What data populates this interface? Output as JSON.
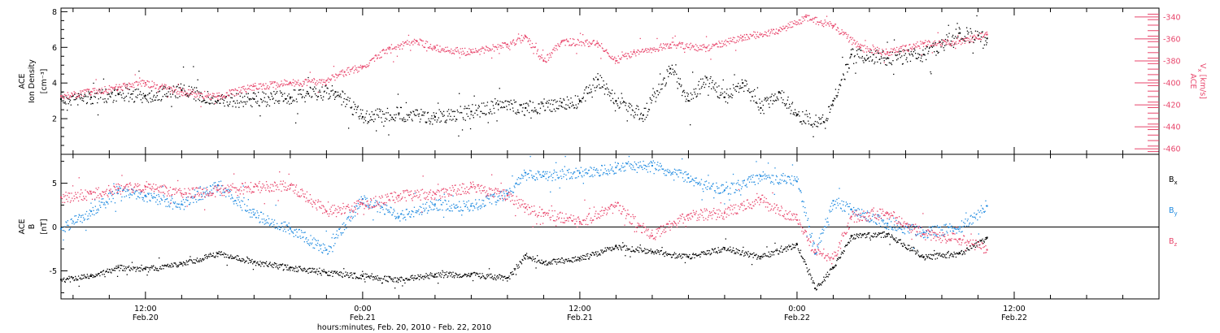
{
  "xlabel": "hours:minutes, Feb. 20, 2010 - Feb. 22, 2010",
  "colors": {
    "black": "#000000",
    "red": "#e8456b",
    "blue": "#1f8ae0"
  },
  "chart_data": [
    {
      "type": "scatter",
      "x_range": [
        "2010-02-20 07:20",
        "2010-02-22 20:00"
      ],
      "x_ticks": [
        {
          "time": "2010-02-20 12:00",
          "label1": "12:00",
          "label2": "Feb.20"
        },
        {
          "time": "2010-02-21 00:00",
          "label1": "0:00",
          "label2": "Feb.21"
        },
        {
          "time": "2010-02-21 12:00",
          "label1": "12:00",
          "label2": "Feb.21"
        },
        {
          "time": "2010-02-22 00:00",
          "label1": "0:00",
          "label2": "Feb.22"
        },
        {
          "time": "2010-02-22 12:00",
          "label1": "12:00",
          "label2": "Feb.22"
        }
      ],
      "left_axis": {
        "label_lines": [
          "ACE",
          "Ion Density"
        ],
        "unit": "[cm⁻³]",
        "ylim": [
          0,
          8.2
        ],
        "ticks": [
          2,
          4,
          6,
          8
        ]
      },
      "right_axis": {
        "label": "ACE",
        "unit": "V",
        "unit_sub": "x",
        "unit_suffix": "[km/s]",
        "ylim": [
          -465,
          -332
        ],
        "ticks": [
          -340,
          -360,
          -380,
          -400,
          -420,
          -440,
          -460
        ]
      },
      "series": [
        {
          "key": "density",
          "color": "#000000",
          "axis": "left",
          "points": [
            [
              "2010-02-20 07:20",
              3.1
            ],
            [
              "2010-02-20 09:00",
              3.2
            ],
            [
              "2010-02-20 10:30",
              3.4
            ],
            [
              "2010-02-20 12:00",
              3.3
            ],
            [
              "2010-02-20 14:00",
              3.6
            ],
            [
              "2010-02-20 16:00",
              3.0
            ],
            [
              "2010-02-20 18:00",
              3.1
            ],
            [
              "2010-02-20 20:00",
              3.2
            ],
            [
              "2010-02-20 21:00",
              3.4
            ],
            [
              "2010-02-20 22:30",
              3.5
            ],
            [
              "2010-02-21 00:00",
              2.1
            ],
            [
              "2010-02-21 02:00",
              2.3
            ],
            [
              "2010-02-21 04:00",
              2.1
            ],
            [
              "2010-02-21 06:00",
              2.4
            ],
            [
              "2010-02-21 07:30",
              2.8
            ],
            [
              "2010-02-21 09:00",
              2.6
            ],
            [
              "2010-02-21 11:00",
              2.9
            ],
            [
              "2010-02-21 12:00",
              3.0
            ],
            [
              "2010-02-21 13:00",
              4.2
            ],
            [
              "2010-02-21 14:00",
              3.0
            ],
            [
              "2010-02-21 15:30",
              2.2
            ],
            [
              "2010-02-21 17:00",
              4.8
            ],
            [
              "2010-02-21 18:00",
              3.0
            ],
            [
              "2010-02-21 19:00",
              4.3
            ],
            [
              "2010-02-21 20:00",
              3.2
            ],
            [
              "2010-02-21 21:00",
              4.0
            ],
            [
              "2010-02-21 22:00",
              2.6
            ],
            [
              "2010-02-21 23:00",
              3.5
            ],
            [
              "2010-02-22 00:00",
              2.2
            ],
            [
              "2010-02-22 01:30",
              1.8
            ],
            [
              "2010-02-22 02:00",
              3.0
            ],
            [
              "2010-02-22 03:00",
              5.6
            ],
            [
              "2010-02-22 05:00",
              5.4
            ],
            [
              "2010-02-22 07:00",
              5.6
            ],
            [
              "2010-02-22 09:00",
              6.8
            ],
            [
              "2010-02-22 10:30",
              6.5
            ]
          ]
        },
        {
          "key": "vx",
          "color": "#e8456b",
          "axis": "right",
          "points": [
            [
              "2010-02-20 07:20",
              -412
            ],
            [
              "2010-02-20 09:00",
              -408
            ],
            [
              "2010-02-20 10:30",
              -404
            ],
            [
              "2010-02-20 12:00",
              -400
            ],
            [
              "2010-02-20 14:00",
              -408
            ],
            [
              "2010-02-20 16:00",
              -412
            ],
            [
              "2010-02-20 18:00",
              -403
            ],
            [
              "2010-02-20 20:00",
              -400
            ],
            [
              "2010-02-20 22:00",
              -398
            ],
            [
              "2010-02-20 23:00",
              -390
            ],
            [
              "2010-02-21 00:00",
              -385
            ],
            [
              "2010-02-21 01:30",
              -368
            ],
            [
              "2010-02-21 03:00",
              -362
            ],
            [
              "2010-02-21 04:00",
              -368
            ],
            [
              "2010-02-21 06:00",
              -372
            ],
            [
              "2010-02-21 08:00",
              -365
            ],
            [
              "2010-02-21 09:00",
              -358
            ],
            [
              "2010-02-21 10:00",
              -380
            ],
            [
              "2010-02-21 11:00",
              -362
            ],
            [
              "2010-02-21 13:00",
              -364
            ],
            [
              "2010-02-21 14:00",
              -380
            ],
            [
              "2010-02-21 15:00",
              -372
            ],
            [
              "2010-02-21 17:00",
              -365
            ],
            [
              "2010-02-21 19:00",
              -368
            ],
            [
              "2010-02-21 21:00",
              -358
            ],
            [
              "2010-02-21 23:00",
              -352
            ],
            [
              "2010-02-22 00:30",
              -340
            ],
            [
              "2010-02-22 02:00",
              -348
            ],
            [
              "2010-02-22 03:30",
              -368
            ],
            [
              "2010-02-22 05:00",
              -372
            ],
            [
              "2010-02-22 07:00",
              -364
            ],
            [
              "2010-02-22 09:00",
              -362
            ],
            [
              "2010-02-22 10:30",
              -356
            ]
          ]
        }
      ]
    },
    {
      "type": "scatter",
      "ylabel_lines": [
        "ACE",
        "B"
      ],
      "unit": "[nT]",
      "ylim": [
        -8.2,
        8.3
      ],
      "ticks": [
        -5,
        0,
        5
      ],
      "legend": [
        {
          "base": "B",
          "sub": "x",
          "color": "#000000"
        },
        {
          "base": "B",
          "sub": "y",
          "color": "#1f8ae0"
        },
        {
          "base": "B",
          "sub": "z",
          "color": "#e8456b"
        }
      ],
      "series": [
        {
          "key": "bx",
          "color": "#000000",
          "points": [
            [
              "2010-02-20 07:20",
              -6.0
            ],
            [
              "2010-02-20 09:00",
              -5.6
            ],
            [
              "2010-02-20 10:30",
              -4.6
            ],
            [
              "2010-02-20 12:00",
              -4.8
            ],
            [
              "2010-02-20 14:00",
              -4.2
            ],
            [
              "2010-02-20 16:00",
              -3.0
            ],
            [
              "2010-02-20 18:00",
              -4.0
            ],
            [
              "2010-02-20 20:00",
              -4.6
            ],
            [
              "2010-02-20 22:00",
              -5.2
            ],
            [
              "2010-02-21 00:00",
              -5.6
            ],
            [
              "2010-02-21 02:00",
              -6.0
            ],
            [
              "2010-02-21 04:00",
              -5.4
            ],
            [
              "2010-02-21 06:00",
              -5.4
            ],
            [
              "2010-02-21 08:00",
              -5.8
            ],
            [
              "2010-02-21 09:00",
              -3.2
            ],
            [
              "2010-02-21 10:00",
              -4.0
            ],
            [
              "2010-02-21 12:00",
              -3.6
            ],
            [
              "2010-02-21 14:00",
              -2.2
            ],
            [
              "2010-02-21 16:00",
              -2.8
            ],
            [
              "2010-02-21 18:00",
              -3.4
            ],
            [
              "2010-02-21 20:00",
              -2.4
            ],
            [
              "2010-02-21 22:00",
              -3.4
            ],
            [
              "2010-02-22 00:00",
              -2.0
            ],
            [
              "2010-02-22 01:00",
              -7.0
            ],
            [
              "2010-02-22 02:00",
              -4.6
            ],
            [
              "2010-02-22 03:00",
              -1.0
            ],
            [
              "2010-02-22 05:00",
              -0.8
            ],
            [
              "2010-02-22 07:00",
              -3.4
            ],
            [
              "2010-02-22 09:00",
              -3.0
            ],
            [
              "2010-02-22 10:30",
              -1.2
            ]
          ]
        },
        {
          "key": "by",
          "color": "#1f8ae0",
          "points": [
            [
              "2010-02-20 07:20",
              -0.2
            ],
            [
              "2010-02-20 09:00",
              1.8
            ],
            [
              "2010-02-20 10:30",
              4.2
            ],
            [
              "2010-02-20 12:00",
              3.6
            ],
            [
              "2010-02-20 14:00",
              2.6
            ],
            [
              "2010-02-20 16:00",
              4.8
            ],
            [
              "2010-02-20 18:00",
              1.4
            ],
            [
              "2010-02-20 20:00",
              -0.2
            ],
            [
              "2010-02-20 22:00",
              -2.6
            ],
            [
              "2010-02-21 00:00",
              3.2
            ],
            [
              "2010-02-21 02:00",
              1.2
            ],
            [
              "2010-02-21 04:00",
              2.6
            ],
            [
              "2010-02-21 06:00",
              2.4
            ],
            [
              "2010-02-21 08:00",
              3.8
            ],
            [
              "2010-02-21 09:00",
              6.2
            ],
            [
              "2010-02-21 10:00",
              5.8
            ],
            [
              "2010-02-21 12:00",
              6.2
            ],
            [
              "2010-02-21 14:00",
              6.8
            ],
            [
              "2010-02-21 16:00",
              7.0
            ],
            [
              "2010-02-21 18:00",
              5.6
            ],
            [
              "2010-02-21 20:00",
              4.2
            ],
            [
              "2010-02-21 22:00",
              5.8
            ],
            [
              "2010-02-22 00:00",
              5.2
            ],
            [
              "2010-02-22 01:00",
              -3.0
            ],
            [
              "2010-02-22 02:00",
              3.0
            ],
            [
              "2010-02-22 03:00",
              2.0
            ],
            [
              "2010-02-22 05:00",
              0.4
            ],
            [
              "2010-02-22 07:00",
              -0.6
            ],
            [
              "2010-02-22 09:00",
              0.0
            ],
            [
              "2010-02-22 10:30",
              2.4
            ]
          ]
        },
        {
          "key": "bz",
          "color": "#e8456b",
          "points": [
            [
              "2010-02-20 07:20",
              3.4
            ],
            [
              "2010-02-20 09:00",
              3.8
            ],
            [
              "2010-02-20 10:30",
              4.4
            ],
            [
              "2010-02-20 12:00",
              4.6
            ],
            [
              "2010-02-20 14:00",
              3.8
            ],
            [
              "2010-02-20 16:00",
              4.2
            ],
            [
              "2010-02-20 18:00",
              4.6
            ],
            [
              "2010-02-20 20:00",
              4.8
            ],
            [
              "2010-02-20 22:00",
              1.8
            ],
            [
              "2010-02-21 00:00",
              2.6
            ],
            [
              "2010-02-21 02:00",
              3.6
            ],
            [
              "2010-02-21 04:00",
              3.8
            ],
            [
              "2010-02-21 06:00",
              4.6
            ],
            [
              "2010-02-21 08:00",
              3.6
            ],
            [
              "2010-02-21 09:00",
              2.2
            ],
            [
              "2010-02-21 10:00",
              1.6
            ],
            [
              "2010-02-21 12:00",
              0.6
            ],
            [
              "2010-02-21 14:00",
              2.4
            ],
            [
              "2010-02-21 16:00",
              -1.0
            ],
            [
              "2010-02-21 18:00",
              1.4
            ],
            [
              "2010-02-21 20:00",
              1.6
            ],
            [
              "2010-02-21 22:00",
              3.2
            ],
            [
              "2010-02-22 00:00",
              0.8
            ],
            [
              "2010-02-22 01:00",
              -2.6
            ],
            [
              "2010-02-22 02:00",
              -3.6
            ],
            [
              "2010-02-22 03:00",
              1.2
            ],
            [
              "2010-02-22 05:00",
              1.6
            ],
            [
              "2010-02-22 07:00",
              -0.8
            ],
            [
              "2010-02-22 09:00",
              -1.4
            ],
            [
              "2010-02-22 10:30",
              -2.6
            ]
          ]
        }
      ]
    }
  ]
}
